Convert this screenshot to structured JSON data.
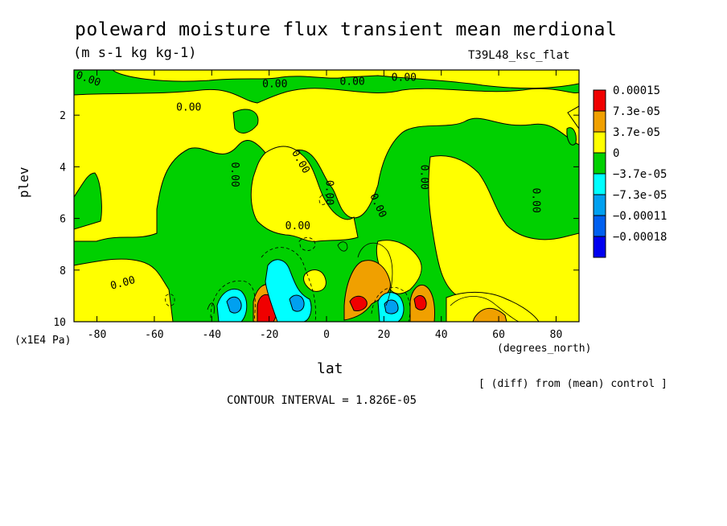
{
  "chart_data": {
    "type": "heatmap",
    "title": "poleward moisture flux transient mean merdional",
    "subtitle": "(m s-1 kg kg-1)",
    "run_id": "T39L48_ksc_flat",
    "xlabel": "lat",
    "x_units": "(degrees_north)",
    "ylabel": "plev",
    "y_units": "(x1E4 Pa)",
    "note": "[ (diff) from (mean) control ]",
    "contour_interval": "CONTOUR INTERVAL = 1.826E-05",
    "xlim": [
      -88,
      88
    ],
    "ylim": [
      10,
      0.25
    ],
    "y_direction": "inverted (pressure increases downward)",
    "x_ticks": [
      "-80",
      "-60",
      "-40",
      "-20",
      "0",
      "20",
      "40",
      "60",
      "80"
    ],
    "x_tick_values": [
      -80,
      -60,
      -40,
      -20,
      0,
      20,
      40,
      60,
      80
    ],
    "y_ticks": [
      "2",
      "4",
      "6",
      "8",
      "10"
    ],
    "y_tick_values": [
      2,
      4,
      6,
      8,
      10
    ],
    "legend": {
      "placement": "right",
      "levels": [
        {
          "label": "0.00015",
          "color": "#f00000"
        },
        {
          "label": "7.3e-05",
          "color": "#f0a000"
        },
        {
          "label": "3.7e-05",
          "color": "#ffff00"
        },
        {
          "label": "0",
          "color": "#00d000"
        },
        {
          "label": "−3.7e-05",
          "color": "#00ffff"
        },
        {
          "label": "−7.3e-05",
          "color": "#00a0f0"
        },
        {
          "label": "−0.00011",
          "color": "#0060f0"
        },
        {
          "label": "−0.00018",
          "color": "#0000f0"
        }
      ]
    },
    "contour_labels": [
      {
        "text": "0.00",
        "lat": -83,
        "plev": 0.6,
        "angle": 20
      },
      {
        "text": "0.00",
        "lat": -48,
        "plev": 1.7,
        "angle": 0
      },
      {
        "text": "0.00",
        "lat": -18,
        "plev": 0.8,
        "angle": 0
      },
      {
        "text": "0.00",
        "lat": 9,
        "plev": 0.7,
        "angle": 0
      },
      {
        "text": "0.00",
        "lat": 27,
        "plev": 0.55,
        "angle": 0
      },
      {
        "text": "0.00",
        "lat": -32,
        "plev": 4.3,
        "angle": 90
      },
      {
        "text": "0.00",
        "lat": -9,
        "plev": 3.8,
        "angle": 60
      },
      {
        "text": "0.00",
        "lat": 1,
        "plev": 5.0,
        "angle": 90
      },
      {
        "text": "0.00",
        "lat": 18,
        "plev": 5.5,
        "angle": 65
      },
      {
        "text": "0.00",
        "lat": 34,
        "plev": 4.4,
        "angle": 90
      },
      {
        "text": "0.00",
        "lat": 73,
        "plev": 5.3,
        "angle": 90
      },
      {
        "text": "0.00",
        "lat": -10,
        "plev": 6.3,
        "angle": 0
      },
      {
        "text": "0.00",
        "lat": -71,
        "plev": 8.5,
        "angle": -15
      }
    ]
  },
  "colors": {
    "positive_small": "#ffff00",
    "negative_small": "#00d000",
    "positive_mid": "#f0a000",
    "positive_high": "#f00000",
    "negative_mid": "#00ffff",
    "negative_high": "#00a0f0"
  }
}
